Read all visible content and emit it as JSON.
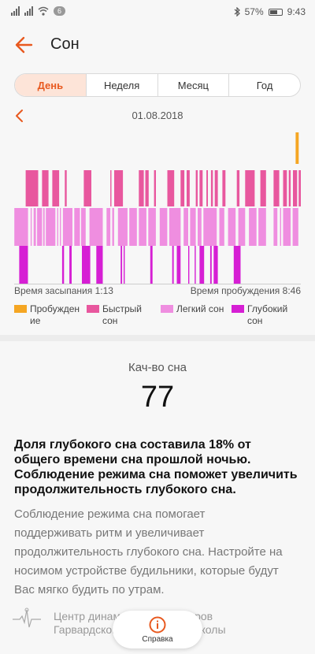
{
  "status_bar": {
    "notification_count": "6",
    "battery": "57%",
    "time": "9:43"
  },
  "header": {
    "title": "Сон"
  },
  "tabs": [
    {
      "label": "День",
      "active": true
    },
    {
      "label": "Неделя",
      "active": false
    },
    {
      "label": "Месяц",
      "active": false
    },
    {
      "label": "Год",
      "active": false
    }
  ],
  "date": "01.08.2018",
  "chart_data": {
    "type": "bar",
    "title": "",
    "x_start": "1:13",
    "x_end": "8:46",
    "series": [
      {
        "name": "Пробуждение",
        "color": "#f5a623",
        "segments": [
          [
            8.63,
            8.71
          ]
        ]
      },
      {
        "name": "Быстрый сон",
        "color": "#e8579e",
        "segments": [
          [
            1.52,
            1.85
          ],
          [
            1.95,
            2.12
          ],
          [
            2.22,
            2.4
          ],
          [
            2.55,
            2.6
          ],
          [
            3.05,
            3.25
          ],
          [
            3.75,
            3.78
          ],
          [
            3.85,
            4.08
          ],
          [
            4.5,
            4.63
          ],
          [
            4.67,
            4.76
          ],
          [
            4.9,
            4.95
          ],
          [
            5.25,
            5.43
          ],
          [
            5.6,
            5.7
          ],
          [
            5.76,
            5.84
          ],
          [
            6.0,
            6.05
          ],
          [
            6.1,
            6.18
          ],
          [
            6.28,
            6.32
          ],
          [
            6.4,
            6.45
          ],
          [
            6.5,
            6.58
          ],
          [
            6.7,
            6.78
          ],
          [
            7.08,
            7.15
          ],
          [
            7.3,
            7.55
          ],
          [
            7.7,
            7.85
          ],
          [
            8.05,
            8.2
          ],
          [
            8.3,
            8.4
          ],
          [
            8.45,
            8.5
          ],
          [
            8.56,
            8.67
          ],
          [
            8.71,
            8.8
          ]
        ]
      },
      {
        "name": "Легкий сон",
        "color": "#ef8ee0",
        "segments": [
          [
            1.22,
            1.58
          ],
          [
            1.65,
            1.68
          ],
          [
            1.73,
            1.79
          ],
          [
            1.82,
            1.95
          ],
          [
            1.98,
            2.02
          ],
          [
            2.05,
            2.3
          ],
          [
            2.35,
            2.38
          ],
          [
            2.42,
            2.45
          ],
          [
            2.5,
            2.75
          ],
          [
            2.8,
            2.95
          ],
          [
            2.98,
            3.1
          ],
          [
            3.2,
            3.55
          ],
          [
            3.65,
            3.75
          ],
          [
            3.8,
            3.85
          ],
          [
            3.95,
            4.2
          ],
          [
            4.25,
            4.45
          ],
          [
            4.5,
            4.7
          ],
          [
            4.75,
            4.95
          ],
          [
            5.05,
            5.25
          ],
          [
            5.3,
            5.6
          ],
          [
            5.68,
            5.8
          ],
          [
            5.85,
            6.0
          ],
          [
            6.05,
            6.15
          ],
          [
            6.2,
            6.55
          ],
          [
            6.62,
            6.75
          ],
          [
            6.85,
            7.05
          ],
          [
            7.12,
            7.3
          ],
          [
            7.4,
            7.6
          ],
          [
            7.65,
            7.85
          ],
          [
            8.05,
            8.15
          ],
          [
            8.22,
            8.25
          ],
          [
            8.3,
            8.5
          ],
          [
            8.55,
            8.7
          ]
        ]
      },
      {
        "name": "Глубокий сон",
        "color": "#d61fd4",
        "segments": [
          [
            1.35,
            1.58
          ],
          [
            2.48,
            2.53
          ],
          [
            2.67,
            2.73
          ],
          [
            3.0,
            3.22
          ],
          [
            3.38,
            3.55
          ],
          [
            4.02,
            4.06
          ],
          [
            4.1,
            4.13
          ],
          [
            4.8,
            4.86
          ],
          [
            5.38,
            5.42
          ],
          [
            5.5,
            5.6
          ],
          [
            5.8,
            5.83
          ],
          [
            5.97,
            6.0
          ],
          [
            6.1,
            6.22
          ],
          [
            6.38,
            6.42
          ],
          [
            6.47,
            6.58
          ],
          [
            7.0,
            7.18
          ]
        ]
      }
    ]
  },
  "times": {
    "sleep_start": "Время засыпания 1:13",
    "wake": "Время пробуждения 8:46"
  },
  "legend": [
    {
      "lines": [
        "Пробужден",
        "ие"
      ]
    },
    {
      "lines": [
        "Быстрый",
        "сон"
      ]
    },
    {
      "lines": [
        "Легкий сон"
      ]
    },
    {
      "lines": [
        "Глубокий",
        "сон"
      ]
    }
  ],
  "quality": {
    "label": "Кач-во сна",
    "score": "77",
    "main_lines": [
      "Доля глубокого сна составила 18% от",
      "общего времени сна прошлой ночью.",
      "Соблюдение режима сна поможет увеличить",
      "продолжительность глубокого сна."
    ],
    "sub_lines": [
      "Соблюдение режима сна помогает",
      "поддерживать ритм и увеличивает",
      "продолжительность глубокого сна. Настройте на",
      "носимом устройстве будильники, которые будут",
      "Вас мягко будить по утрам."
    ]
  },
  "source": {
    "line1": "Центр динамических маркеров",
    "line2": "Гарвардской медицинской школы"
  },
  "help": {
    "label": "Справка"
  },
  "colors": {
    "accent": "#e8591f",
    "awake": "#f5a623",
    "rem": "#e8579e",
    "light": "#ef8ee0",
    "deep": "#d61fd4"
  }
}
